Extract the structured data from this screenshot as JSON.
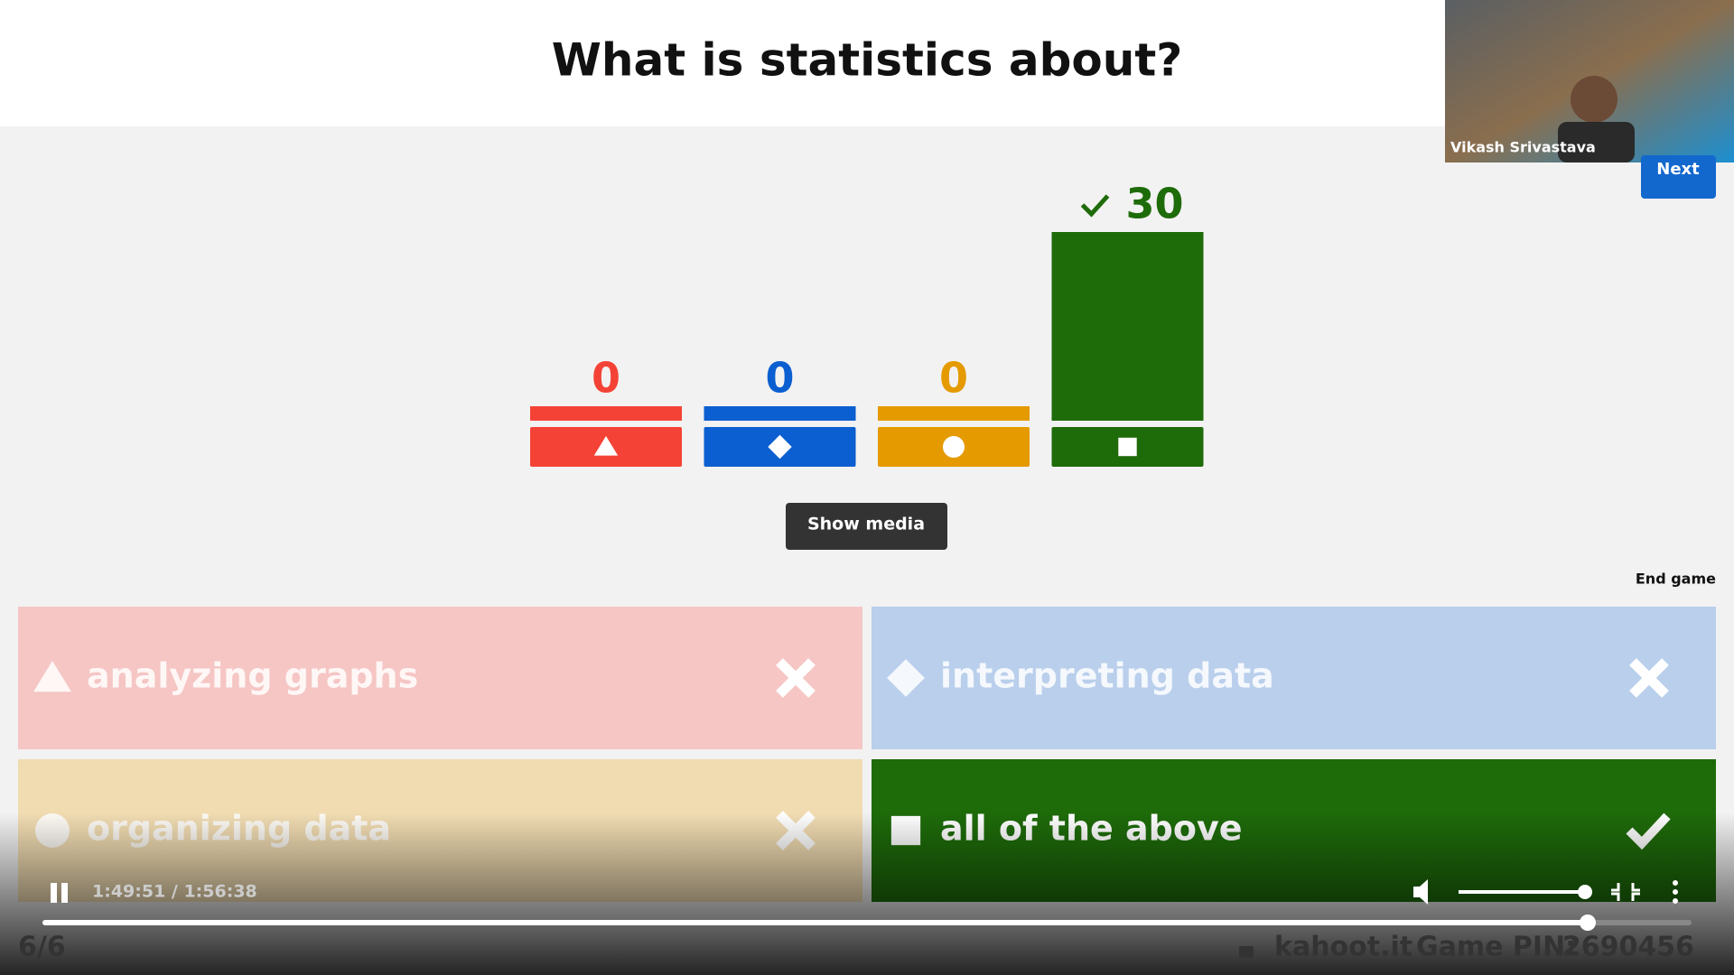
{
  "question": "What is statistics about?",
  "webcam": {
    "name": "Vikash Srivastava"
  },
  "buttons": {
    "next": "Next",
    "show_media": "Show media",
    "end_game": "End game"
  },
  "results": {
    "values": [
      0,
      0,
      0,
      30
    ],
    "colors": [
      "#f44336",
      "#0b5fd0",
      "#e59a00",
      "#1e6b0a"
    ]
  },
  "answers": [
    {
      "text": "analyzing graphs",
      "correct": false,
      "color": "#f5c6c4"
    },
    {
      "text": "interpreting data",
      "correct": false,
      "color": "#b9cfec"
    },
    {
      "text": "organizing data",
      "correct": false,
      "color": "#f1dcb2"
    },
    {
      "text": "all of the above",
      "correct": true,
      "color": "#1e6b0a"
    }
  ],
  "player": {
    "time": "1:49:51 / 1:56:38"
  },
  "footer": {
    "progress": "6/6",
    "site": "kahoot.it",
    "pin_label": "Game PIN:",
    "pin": "2690456"
  }
}
